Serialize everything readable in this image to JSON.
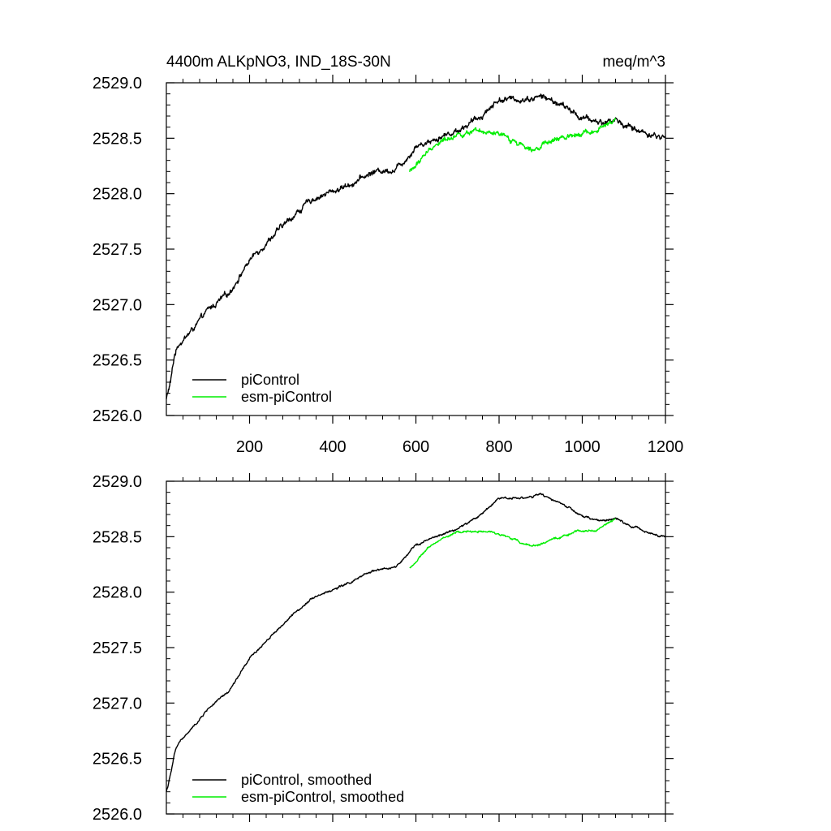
{
  "figure": {
    "title_left": "4400m ALKpNO3, IND_18S-30N",
    "title_right": "meq/m^3"
  },
  "colors": {
    "piControl": "#000000",
    "esm_piControl": "#00ee00",
    "axis": "#000000",
    "background": "#ffffff"
  },
  "chart_data": [
    {
      "type": "line",
      "panel": "top",
      "title": "4400m ALKpNO3, IND_18S-30N",
      "units": "meq/m^3",
      "xlim": [
        0,
        1200
      ],
      "ylim": [
        2526.0,
        2529.0
      ],
      "x_ticks": [
        200,
        400,
        600,
        800,
        1000,
        1200
      ],
      "x_tick_labels": [
        "200",
        "400",
        "600",
        "800",
        "1000",
        "1200"
      ],
      "y_ticks": [
        2526.0,
        2526.5,
        2527.0,
        2527.5,
        2528.0,
        2528.5,
        2529.0
      ],
      "y_tick_labels": [
        "2526.0",
        "2526.5",
        "2527.0",
        "2527.5",
        "2528.0",
        "2528.5",
        "2529.0"
      ],
      "grid": false,
      "legend_position": "bottom-left",
      "smoothed": false,
      "series": [
        {
          "name": "piControl",
          "color": "#000000",
          "noise": 0.022,
          "x": [
            0,
            10,
            20,
            30,
            50,
            80,
            100,
            150,
            200,
            250,
            300,
            350,
            400,
            450,
            500,
            550,
            580,
            600,
            650,
            700,
            750,
            800,
            850,
            880,
            900,
            950,
            1000,
            1050,
            1080,
            1100,
            1150,
            1200
          ],
          "y": [
            2526.15,
            2526.3,
            2526.55,
            2526.65,
            2526.72,
            2526.85,
            2526.95,
            2527.1,
            2527.4,
            2527.6,
            2527.78,
            2527.95,
            2528.02,
            2528.1,
            2528.2,
            2528.22,
            2528.33,
            2528.43,
            2528.5,
            2528.57,
            2528.68,
            2528.85,
            2528.85,
            2528.86,
            2528.88,
            2528.8,
            2528.68,
            2528.64,
            2528.67,
            2528.62,
            2528.55,
            2528.5
          ]
        },
        {
          "name": "esm-piControl",
          "color": "#00ee00",
          "noise": 0.02,
          "x": [
            585,
            600,
            620,
            650,
            700,
            750,
            800,
            850,
            880,
            900,
            950,
            1000,
            1030,
            1050,
            1080
          ],
          "y": [
            2528.2,
            2528.25,
            2528.35,
            2528.45,
            2528.54,
            2528.55,
            2528.53,
            2528.45,
            2528.42,
            2528.43,
            2528.5,
            2528.56,
            2528.55,
            2528.6,
            2528.66
          ]
        }
      ]
    },
    {
      "type": "line",
      "panel": "bottom",
      "xlim": [
        0,
        1200
      ],
      "ylim": [
        2526.0,
        2529.0
      ],
      "x_ticks": [
        200,
        400,
        600,
        800,
        1000,
        1200
      ],
      "x_tick_labels": [],
      "y_ticks": [
        2526.0,
        2526.5,
        2527.0,
        2527.5,
        2528.0,
        2528.5,
        2529.0
      ],
      "y_tick_labels": [
        "2526.0",
        "2526.5",
        "2527.0",
        "2527.5",
        "2528.0",
        "2528.5",
        "2529.0"
      ],
      "grid": false,
      "legend_position": "bottom-left",
      "smoothed": true,
      "series": [
        {
          "name": "piControl, smoothed",
          "color": "#000000",
          "noise": 0.008,
          "x": [
            0,
            10,
            20,
            30,
            50,
            80,
            100,
            150,
            200,
            250,
            300,
            350,
            400,
            450,
            500,
            550,
            580,
            600,
            650,
            700,
            750,
            800,
            850,
            880,
            900,
            950,
            1000,
            1050,
            1080,
            1100,
            1150,
            1200
          ],
          "y": [
            2526.2,
            2526.35,
            2526.55,
            2526.65,
            2526.72,
            2526.85,
            2526.95,
            2527.1,
            2527.4,
            2527.6,
            2527.78,
            2527.95,
            2528.02,
            2528.1,
            2528.2,
            2528.22,
            2528.33,
            2528.43,
            2528.5,
            2528.57,
            2528.68,
            2528.85,
            2528.85,
            2528.86,
            2528.88,
            2528.8,
            2528.68,
            2528.64,
            2528.67,
            2528.62,
            2528.55,
            2528.5
          ]
        },
        {
          "name": "esm-piControl, smoothed",
          "color": "#00ee00",
          "noise": 0.008,
          "x": [
            585,
            600,
            620,
            650,
            700,
            750,
            800,
            850,
            880,
            900,
            950,
            1000,
            1030,
            1050,
            1080
          ],
          "y": [
            2528.22,
            2528.27,
            2528.36,
            2528.46,
            2528.54,
            2528.55,
            2528.53,
            2528.45,
            2528.42,
            2528.43,
            2528.5,
            2528.56,
            2528.55,
            2528.6,
            2528.66
          ]
        }
      ]
    }
  ]
}
